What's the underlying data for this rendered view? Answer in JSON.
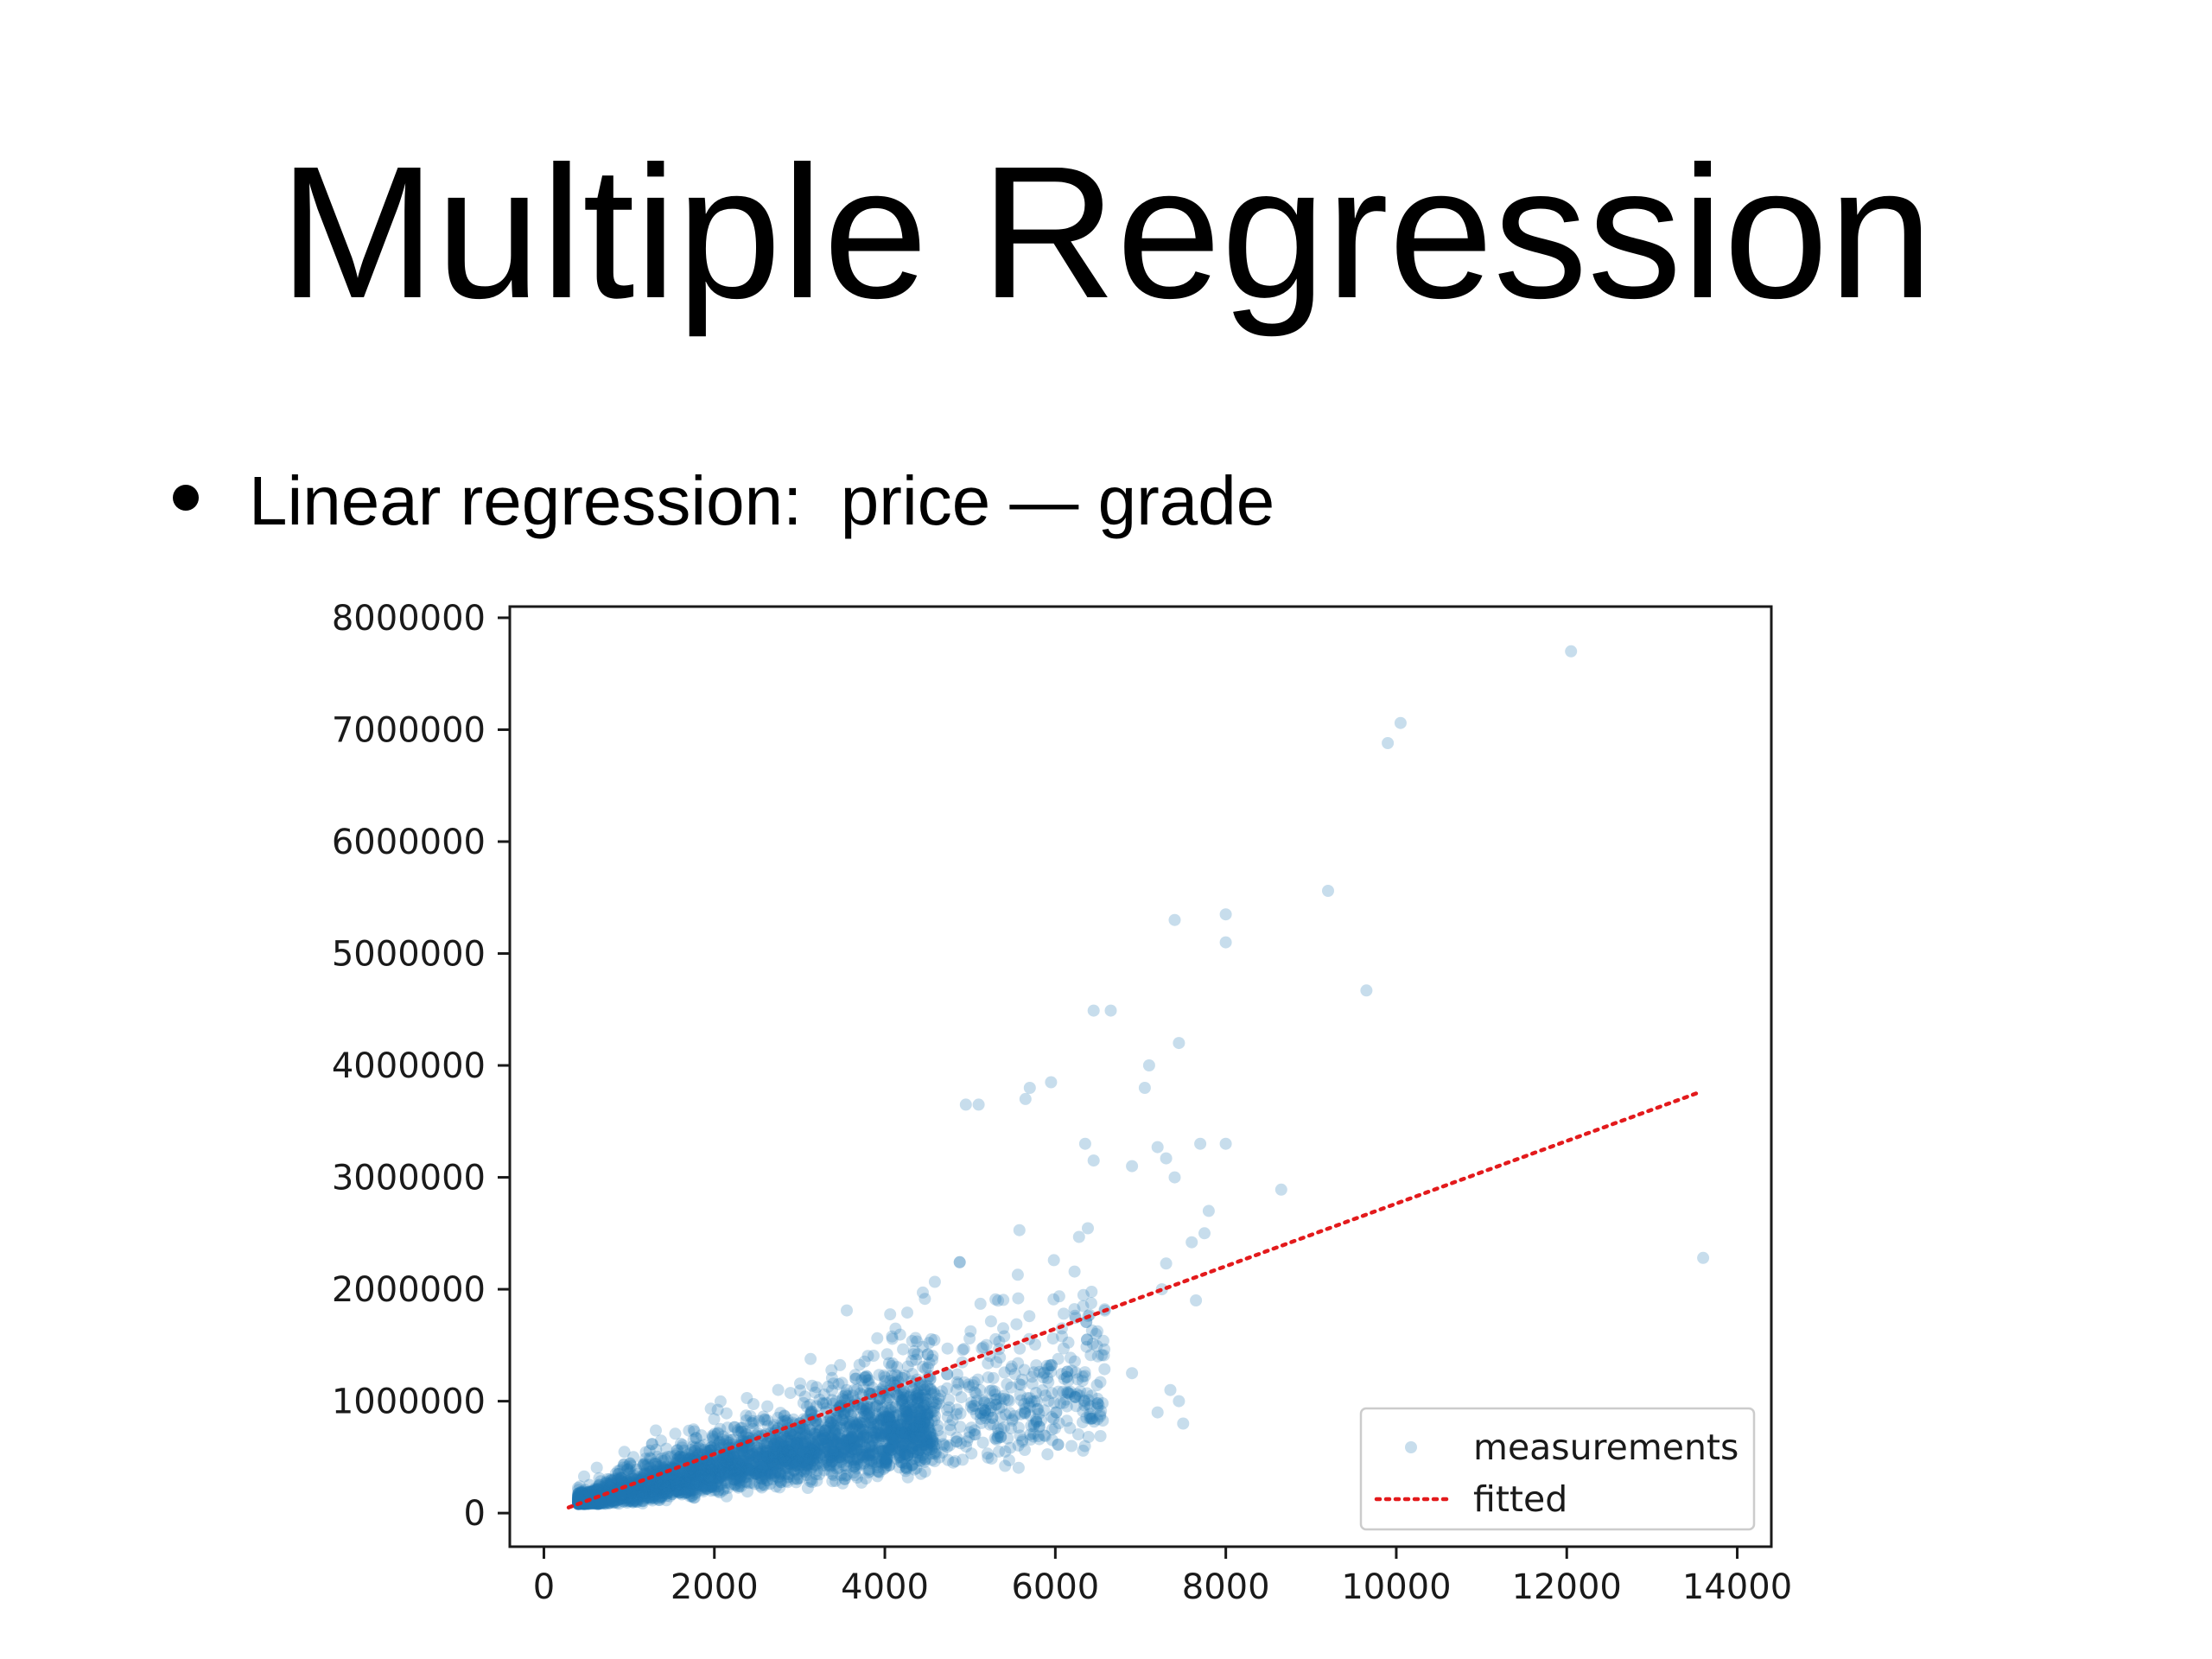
{
  "slide": {
    "title": "Multiple Regression",
    "bullet": "Linear regression:  price — grade"
  },
  "chart_data": {
    "type": "scatter",
    "xlim": [
      -400,
      14400
    ],
    "ylim": [
      -300000,
      8100000
    ],
    "x_ticks": [
      0,
      2000,
      4000,
      6000,
      8000,
      10000,
      12000,
      14000
    ],
    "x_tick_labels": [
      "0",
      "2000",
      "4000",
      "6000",
      "8000",
      "10000",
      "12000",
      "14000"
    ],
    "y_ticks": [
      0,
      1000000,
      2000000,
      3000000,
      4000000,
      5000000,
      6000000,
      7000000,
      8000000
    ],
    "y_tick_labels": [
      "0",
      "1000000",
      "2000000",
      "3000000",
      "4000000",
      "5000000",
      "6000000",
      "7000000",
      "8000000"
    ],
    "xlabel": "",
    "ylabel": "",
    "grid": false,
    "legend_position": "lower-right",
    "series": [
      {
        "name": "measurements",
        "kind": "points",
        "color": "#1f77b4",
        "alpha": 0.25,
        "points": [
          [
            12050,
            7700000
          ],
          [
            10050,
            7060000
          ],
          [
            9900,
            6880000
          ],
          [
            9200,
            5560000
          ],
          [
            8000,
            5350000
          ],
          [
            7400,
            5300000
          ],
          [
            8000,
            5100000
          ],
          [
            9650,
            4670000
          ],
          [
            6450,
            4490000
          ],
          [
            6650,
            4490000
          ],
          [
            7450,
            4200000
          ],
          [
            7100,
            4000000
          ],
          [
            7050,
            3800000
          ],
          [
            5950,
            3850000
          ],
          [
            5700,
            3800000
          ],
          [
            5650,
            3700000
          ],
          [
            5100,
            3650000
          ],
          [
            4950,
            3650000
          ],
          [
            13600,
            2280000
          ],
          [
            8650,
            2890000
          ],
          [
            7700,
            3300000
          ],
          [
            8000,
            3300000
          ],
          [
            7200,
            3270000
          ],
          [
            7300,
            3170000
          ],
          [
            6900,
            3100000
          ],
          [
            7400,
            3000000
          ],
          [
            6350,
            3300000
          ],
          [
            6450,
            3150000
          ],
          [
            7800,
            2700000
          ],
          [
            7750,
            2500000
          ],
          [
            7600,
            2420000
          ],
          [
            7300,
            2230000
          ],
          [
            7250,
            2000000
          ],
          [
            7650,
            1900000
          ],
          [
            7450,
            1000000
          ],
          [
            7350,
            1100000
          ],
          [
            7500,
            800000
          ],
          [
            7200,
            900000
          ],
          [
            6900,
            1250000
          ],
          [
            6500,
            1400000
          ]
        ]
      },
      {
        "name": "fitted",
        "kind": "line",
        "color": "#e31a1c",
        "style": "dotted",
        "x": [
          290,
          13520
        ],
        "y": [
          50000,
          3750000
        ]
      }
    ]
  }
}
